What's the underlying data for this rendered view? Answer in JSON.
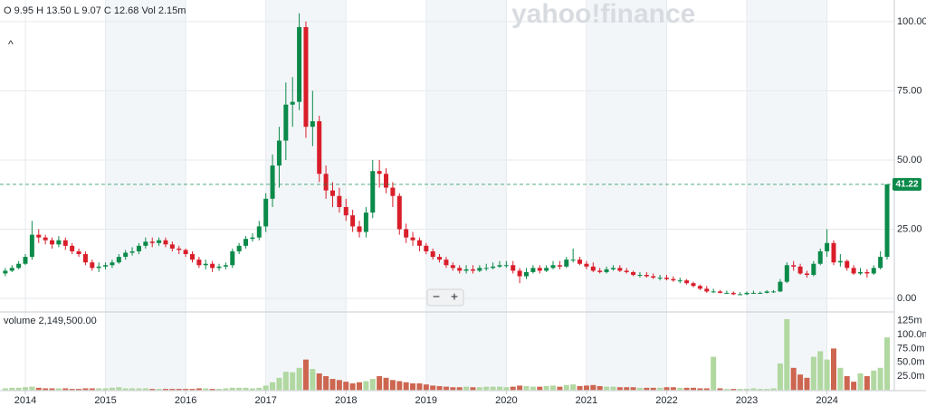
{
  "header": {
    "ohlc": "O 9.95  H 13.50  L 9.07  C 12.68  Vol 2.15m",
    "watermark": "yahoo!finance",
    "collapse": "^",
    "volume_label": "volume  2,149,500.00",
    "zoom_out": "−",
    "zoom_in": "+"
  },
  "chart_data": {
    "type": "candlestick",
    "categories": [
      null,
      null,
      null,
      "2014",
      null,
      null,
      null,
      null,
      null,
      null,
      null,
      null,
      null,
      null,
      null,
      "2015",
      null,
      null,
      null,
      null,
      null,
      null,
      null,
      null,
      null,
      null,
      null,
      "2016",
      null,
      null,
      null,
      null,
      null,
      null,
      null,
      null,
      null,
      null,
      null,
      "2017",
      null,
      null,
      null,
      null,
      null,
      null,
      null,
      null,
      null,
      null,
      null,
      "2018",
      null,
      null,
      null,
      null,
      null,
      null,
      null,
      null,
      null,
      null,
      null,
      "2019",
      null,
      null,
      null,
      null,
      null,
      null,
      null,
      null,
      null,
      null,
      null,
      "2020",
      null,
      null,
      null,
      null,
      null,
      null,
      null,
      null,
      null,
      null,
      null,
      "2021",
      null,
      null,
      null,
      null,
      null,
      null,
      null,
      null,
      null,
      null,
      null,
      "2022",
      null,
      null,
      null,
      null,
      null,
      null,
      null,
      null,
      null,
      null,
      null,
      "2023",
      null,
      null,
      null,
      null,
      null,
      null,
      null,
      null,
      null,
      null,
      null,
      "2024",
      null,
      null,
      null,
      null,
      null,
      null,
      null,
      null,
      null
    ],
    "open": [
      9,
      10,
      11,
      12.5,
      15,
      23,
      22,
      21,
      19.5,
      21,
      19,
      17,
      16,
      13,
      11,
      11.5,
      12,
      13,
      15,
      16.5,
      17,
      19,
      20.5,
      20,
      21,
      19.5,
      18,
      17.5,
      16,
      14,
      12,
      12.5,
      11,
      11.5,
      12,
      17,
      19,
      21.5,
      22,
      26,
      36,
      48,
      57,
      70,
      71,
      98,
      62,
      64,
      45,
      39,
      37,
      33,
      30,
      26,
      24,
      31,
      46,
      45,
      40,
      37,
      25,
      22,
      21,
      19,
      17,
      15,
      14,
      12,
      11,
      10,
      10.5,
      10,
      11,
      11,
      11.5,
      12,
      12,
      10,
      8,
      9.5,
      11,
      10,
      11,
      12,
      11.5,
      14,
      14,
      12.5,
      11.5,
      10,
      9.5,
      10.5,
      11,
      10,
      9.5,
      8.5,
      8.5,
      8,
      7.5,
      7.5,
      7,
      6.5,
      6.5,
      5.5,
      4.5,
      3.5,
      2.3,
      2.5,
      2,
      2,
      1.5,
      1.5,
      2,
      2,
      2,
      2.5,
      2.5,
      6,
      12,
      11.5,
      9,
      8.5,
      12.5,
      17,
      20,
      13,
      13.5,
      11,
      9,
      9.5,
      9,
      11,
      15
    ],
    "high": [
      11,
      12,
      13.5,
      16,
      28,
      25,
      23,
      22,
      22.5,
      22,
      20,
      18,
      17,
      14,
      13,
      13,
      14,
      16,
      17.5,
      18.5,
      20,
      22,
      22,
      22,
      22,
      20.5,
      19,
      18,
      17,
      15,
      14,
      13.5,
      12.5,
      13,
      18,
      20,
      22.5,
      23.5,
      28,
      38,
      52,
      62,
      78,
      80,
      103,
      100,
      75,
      66,
      48,
      42,
      40,
      36,
      32,
      28,
      33,
      50,
      50,
      47,
      42,
      38,
      27,
      24,
      22,
      20,
      18,
      16,
      15,
      13,
      12,
      12,
      12,
      12,
      12.5,
      13,
      13.5,
      13.5,
      13.5,
      11,
      11,
      12,
      12,
      12,
      13.5,
      13.5,
      15,
      18,
      15,
      13.5,
      13,
      11,
      11.5,
      12,
      12,
      11,
      10,
      9.5,
      9.5,
      9,
      8.5,
      8.5,
      8,
      7.5,
      7,
      6,
      5,
      4.5,
      3.5,
      3,
      2.8,
      2.5,
      2.2,
      2.5,
      2.8,
      2.5,
      3,
      3,
      7,
      13,
      13.5,
      12.5,
      10,
      13.5,
      18,
      25,
      21,
      16,
      14,
      12,
      11,
      10.5,
      12,
      17,
      41.22
    ],
    "low": [
      8,
      9.5,
      10.5,
      12,
      14,
      20,
      19.5,
      18,
      18.5,
      17.5,
      16,
      15,
      12,
      10,
      9.5,
      10.5,
      11,
      12.5,
      14,
      15.5,
      16,
      18,
      18.5,
      19,
      18.5,
      17,
      16,
      15,
      13,
      11,
      10.5,
      9.5,
      10,
      10.5,
      11,
      16,
      18,
      20.5,
      21,
      24,
      33,
      40,
      50,
      62,
      68,
      58,
      55,
      42,
      36,
      33,
      31,
      28,
      24,
      22,
      22,
      29,
      40,
      38,
      33,
      23,
      20,
      19,
      17,
      16,
      14,
      13,
      11,
      10,
      9,
      9,
      9,
      9.5,
      10,
      10.5,
      11,
      11,
      9,
      5.5,
      7,
      9,
      9,
      9.5,
      10.5,
      10.5,
      11,
      13,
      12,
      10.5,
      9.5,
      9,
      9,
      10,
      9.5,
      9,
      8,
      7.5,
      7.5,
      7,
      6.5,
      6.5,
      6,
      5.5,
      5,
      4,
      3,
      2,
      2,
      1.8,
      1.6,
      1.2,
      1.2,
      1.2,
      1.6,
      1.6,
      1.8,
      2,
      2.3,
      5.5,
      10,
      8.5,
      7.5,
      8,
      12,
      15,
      12,
      11.5,
      10,
      8.5,
      8.5,
      7.5,
      8.5,
      10.5,
      14
    ],
    "close": [
      10,
      11,
      12.5,
      15,
      23,
      22,
      21,
      19.5,
      21,
      19,
      17,
      16,
      13,
      11,
      11.5,
      12,
      13,
      15,
      16.5,
      17,
      19,
      20.5,
      20,
      21,
      19.5,
      18,
      17.5,
      16,
      14,
      12,
      12.5,
      11,
      11.5,
      12,
      17,
      19,
      21.5,
      22,
      26,
      36,
      48,
      57,
      70,
      71,
      98,
      62,
      64,
      45,
      39,
      37,
      33,
      30,
      26,
      24,
      31,
      46,
      45,
      40,
      37,
      25,
      22,
      21,
      19,
      17,
      15,
      14,
      12,
      11,
      10,
      10.5,
      10,
      11,
      11,
      11.5,
      12,
      12,
      10,
      8,
      9.5,
      11,
      10,
      11,
      12,
      11.5,
      14,
      14,
      12.5,
      11.5,
      10,
      9.5,
      10.5,
      11,
      10,
      9.5,
      8.5,
      8.5,
      8,
      7.5,
      7.5,
      7,
      6.5,
      6.5,
      5.5,
      4.5,
      3.5,
      2.5,
      2.5,
      2,
      2,
      1.5,
      1.5,
      2,
      2,
      2,
      2.5,
      2.5,
      6,
      12,
      11.5,
      9,
      8.5,
      12.5,
      17,
      20,
      13,
      13.5,
      11,
      9,
      9.5,
      9,
      11,
      15,
      41.22
    ],
    "up_color": "#0b8a4a",
    "down_color": "#d91e2a",
    "ylim": [
      -4.9,
      107.8
    ],
    "yticks": [
      {
        "value": 0,
        "label": "0.00"
      },
      {
        "value": 25,
        "label": "25.00"
      },
      {
        "value": 50,
        "label": "50.00"
      },
      {
        "value": 75,
        "label": "75.00"
      },
      {
        "value": 100,
        "label": "100.00"
      }
    ],
    "last_price": 41.22,
    "last_color": "#0b8a4a",
    "grid": true,
    "volume": {
      "values": [
        3,
        4,
        4,
        5,
        6,
        4,
        3,
        3,
        3,
        3,
        2,
        2,
        3,
        3,
        3,
        3,
        4,
        5,
        3,
        3,
        3,
        3,
        2,
        2,
        2,
        2,
        2,
        2,
        2,
        3,
        3,
        2,
        2,
        3,
        4,
        4,
        4,
        3,
        4,
        8,
        14,
        22,
        33,
        32,
        40,
        55,
        38,
        30,
        25,
        20,
        18,
        15,
        12,
        14,
        16,
        20,
        25,
        22,
        18,
        16,
        14,
        12,
        12,
        10,
        8,
        7,
        6,
        5,
        5,
        6,
        5,
        5,
        6,
        6,
        6,
        5,
        6,
        8,
        7,
        6,
        6,
        7,
        8,
        6,
        9,
        10,
        7,
        8,
        9,
        7,
        6,
        6,
        5,
        5,
        5,
        4,
        4,
        4,
        4,
        5,
        5,
        4,
        4,
        4,
        3,
        3,
        60,
        3,
        2,
        2,
        2,
        2,
        3,
        2,
        2,
        3,
        48,
        128,
        40,
        28,
        22,
        60,
        70,
        55,
        75,
        40,
        25,
        15,
        30,
        25,
        35,
        40,
        95
      ],
      "up_color": "#b0d8a0",
      "down_color": "#cd6650",
      "ylim": [
        0,
        141
      ],
      "yticks": [
        {
          "value": 25,
          "label": "25.0m"
        },
        {
          "value": 50,
          "label": "50.0m"
        },
        {
          "value": 75,
          "label": "75.0m"
        },
        {
          "value": 100,
          "label": "100.0m"
        },
        {
          "value": 125,
          "label": "125m"
        }
      ]
    }
  }
}
